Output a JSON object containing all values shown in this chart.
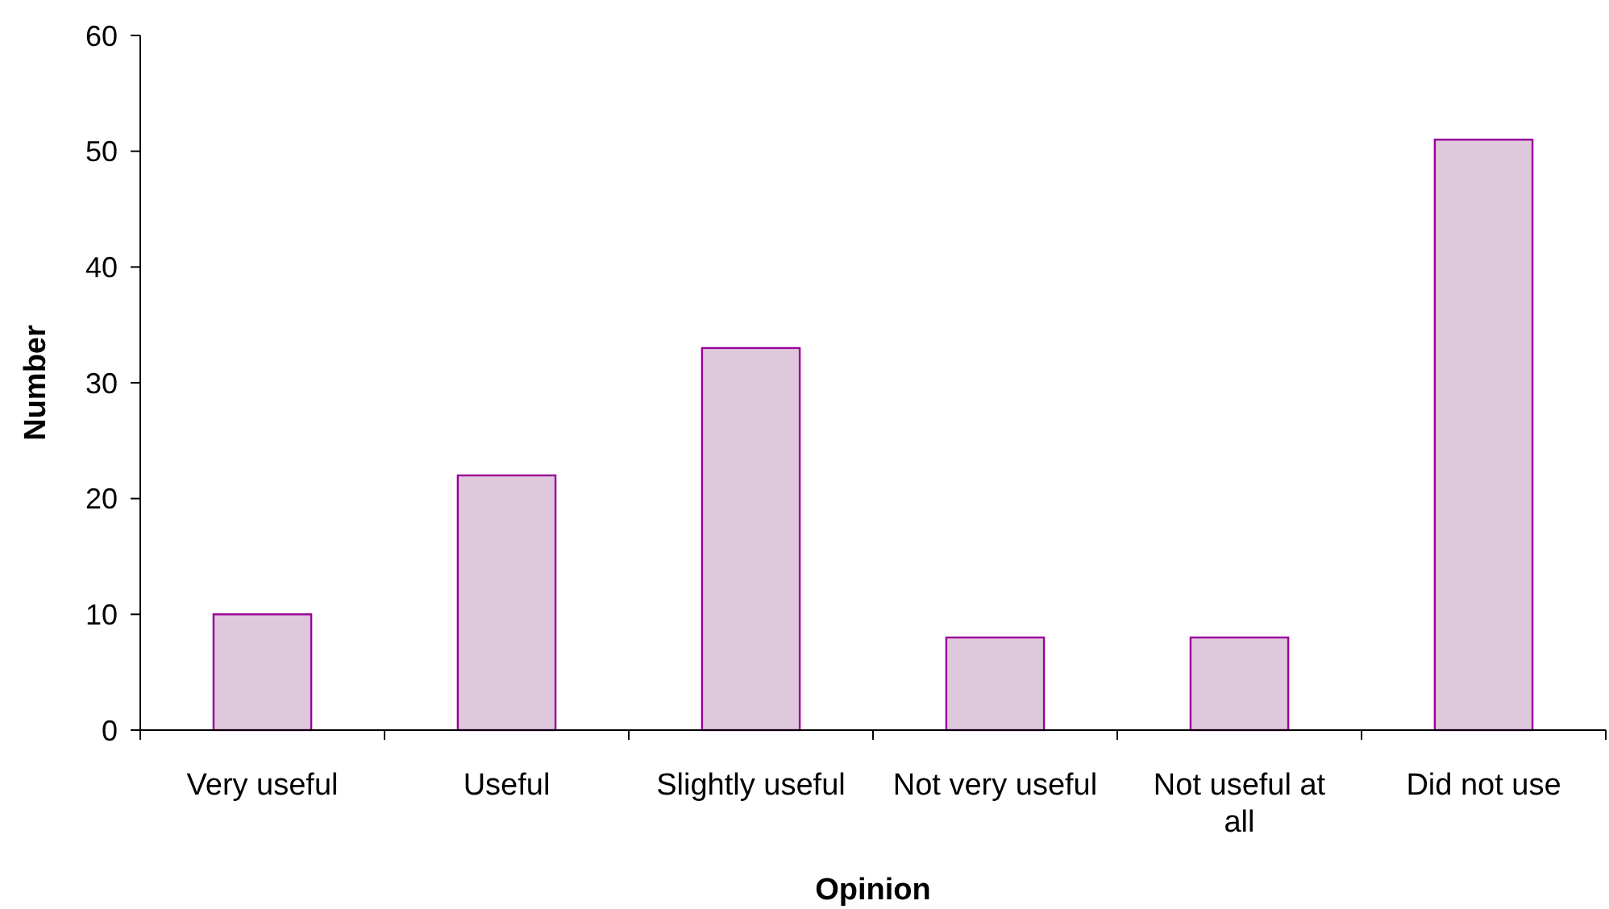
{
  "chart_data": {
    "type": "bar",
    "xlabel": "Opinion",
    "ylabel": "Number",
    "categories": [
      "Very useful",
      "Useful",
      "Slightly useful",
      "Not very useful",
      "Not useful at all",
      "Did not use"
    ],
    "values": [
      10,
      22,
      33,
      8,
      8,
      51
    ],
    "color": "#dfc7dc",
    "ylim": [
      0,
      60
    ],
    "yticks": [
      0,
      10,
      20,
      30,
      40,
      50,
      60
    ],
    "grid": false
  }
}
